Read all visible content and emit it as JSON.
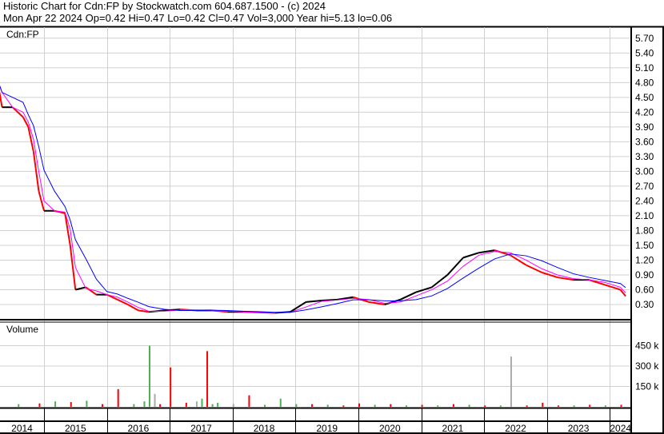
{
  "header": {
    "title": "Historic Chart for Cdn:FP by Stockwatch.com 604.687.1500 - (c) 2024",
    "quote": "Mon Apr 22 2024   Op=0.42   Hi=0.47   Lo=0.42   Cl=0.47   Vol=3,000   Year hi=5.13   lo=0.06"
  },
  "chart_data": [
    {
      "type": "line",
      "title": "Cdn:FP",
      "ylim": [
        0,
        5.85
      ],
      "yticks": [
        "0.30",
        "0.60",
        "0.90",
        "1.20",
        "1.50",
        "1.80",
        "2.10",
        "2.40",
        "2.70",
        "3.00",
        "3.30",
        "3.60",
        "3.90",
        "4.20",
        "4.50",
        "4.80",
        "5.10",
        "5.40",
        "5.70"
      ],
      "xticks": [
        "2014",
        "2015",
        "2016",
        "2017",
        "2018",
        "2019",
        "2020",
        "2021",
        "2022",
        "2023",
        "2024"
      ],
      "grid": true,
      "colors": {
        "price_up": "#000000",
        "price_down": "#ff0000",
        "ma_short": "#ff00ff",
        "ma_long": "#0000ff"
      },
      "series": [
        {
          "x": [
            "2014-04",
            "2014-05",
            "2014-07",
            "2014-09",
            "2014-10",
            "2014-11",
            "2014-12",
            "2015-01",
            "2015-03",
            "2015-05",
            "2015-06",
            "2015-07",
            "2015-09",
            "2015-11",
            "2016-01",
            "2016-03",
            "2016-05",
            "2016-07",
            "2016-09",
            "2016-12",
            "2017-03",
            "2017-06",
            "2017-09",
            "2017-12",
            "2018-03",
            "2018-06",
            "2018-09",
            "2018-12",
            "2019-03",
            "2019-06",
            "2019-09",
            "2019-12",
            "2020-03",
            "2020-06",
            "2020-09",
            "2020-12",
            "2021-03",
            "2021-06",
            "2021-09",
            "2021-12",
            "2022-03",
            "2022-06",
            "2022-09",
            "2022-12",
            "2023-03",
            "2023-06",
            "2023-09",
            "2023-12",
            "2024-03",
            "2024-04"
          ],
          "values": [
            4.9,
            4.3,
            4.3,
            4.1,
            3.9,
            3.4,
            2.6,
            2.2,
            2.2,
            2.15,
            1.5,
            0.6,
            0.65,
            0.5,
            0.5,
            0.4,
            0.3,
            0.18,
            0.15,
            0.18,
            0.2,
            0.18,
            0.18,
            0.15,
            0.15,
            0.14,
            0.13,
            0.15,
            0.35,
            0.38,
            0.4,
            0.45,
            0.35,
            0.3,
            0.4,
            0.55,
            0.65,
            0.9,
            1.25,
            1.35,
            1.4,
            1.3,
            1.1,
            0.95,
            0.85,
            0.8,
            0.8,
            0.7,
            0.6,
            0.47
          ]
        }
      ]
    },
    {
      "type": "bar",
      "title": "Volume",
      "yticks": [
        "150 k",
        "300 k",
        "450 k"
      ],
      "ylim": [
        0,
        500000
      ],
      "colors": {
        "up": "#4caf50",
        "down": "#ff0000",
        "flat": "#aaaaaa"
      },
      "series": [
        {
          "x": [
            "2014-04",
            "2014-08",
            "2014-12",
            "2015-03",
            "2015-06",
            "2015-09",
            "2015-12",
            "2016-03",
            "2016-06",
            "2016-08",
            "2016-09",
            "2016-10",
            "2016-11",
            "2017-01",
            "2017-04",
            "2017-06",
            "2017-07",
            "2017-08",
            "2017-09",
            "2017-10",
            "2018-01",
            "2018-04",
            "2018-07",
            "2018-10",
            "2019-01",
            "2019-04",
            "2019-07",
            "2019-10",
            "2020-01",
            "2020-04",
            "2020-07",
            "2020-10",
            "2021-01",
            "2021-04",
            "2021-07",
            "2021-10",
            "2022-01",
            "2022-04",
            "2022-06",
            "2022-09",
            "2022-12",
            "2023-03",
            "2023-06",
            "2023-09",
            "2023-12",
            "2024-03"
          ],
          "values": [
            55000,
            20000,
            25000,
            40000,
            35000,
            45000,
            20000,
            130000,
            20000,
            40000,
            450000,
            95000,
            20000,
            290000,
            30000,
            40000,
            60000,
            410000,
            20000,
            30000,
            20000,
            85000,
            15000,
            60000,
            20000,
            20000,
            15000,
            10000,
            25000,
            15000,
            20000,
            10000,
            15000,
            10000,
            20000,
            15000,
            10000,
            10000,
            370000,
            10000,
            30000,
            10000,
            10000,
            15000,
            10000,
            15000
          ],
          "dir": [
            "down",
            "up",
            "down",
            "up",
            "down",
            "up",
            "down",
            "down",
            "up",
            "up",
            "up",
            "flat",
            "down",
            "down",
            "down",
            "flat",
            "up",
            "down",
            "up",
            "up",
            "flat",
            "down",
            "up",
            "up",
            "up",
            "down",
            "up",
            "down",
            "down",
            "up",
            "down",
            "up",
            "down",
            "up",
            "down",
            "up",
            "down",
            "up",
            "flat",
            "down",
            "down",
            "down",
            "up",
            "down",
            "up",
            "down"
          ]
        }
      ]
    }
  ]
}
